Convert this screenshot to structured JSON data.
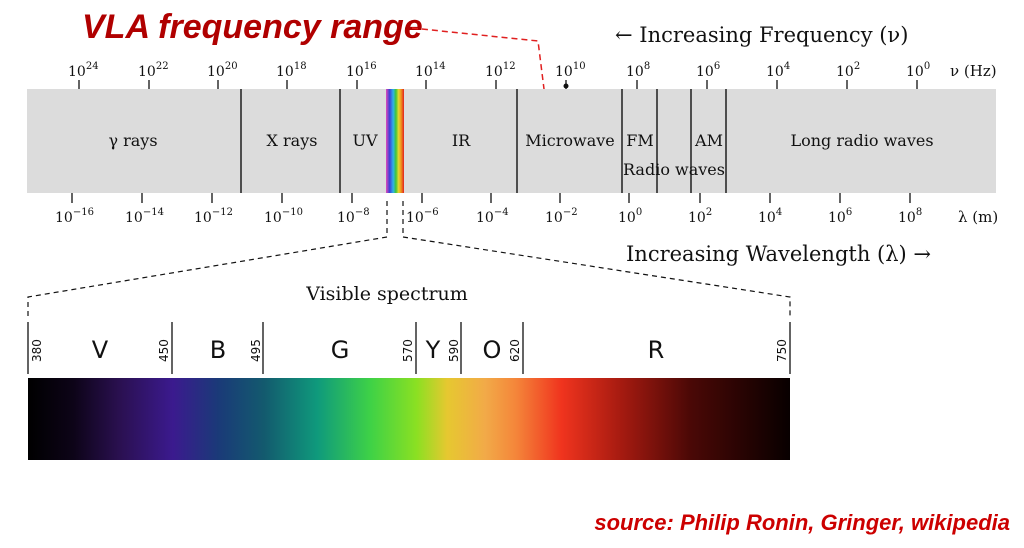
{
  "annotation": {
    "title": "VLA frequency range",
    "source": "source: Philip Ronin, Gringer, wikipedia",
    "title_color": "#b00000",
    "source_color": "#cc0000"
  },
  "frequency_axis": {
    "label": "← Increasing Frequency (ν)",
    "unit": "ν (Hz)",
    "ticks": [
      {
        "base": "10",
        "exp": "24"
      },
      {
        "base": "10",
        "exp": "22"
      },
      {
        "base": "10",
        "exp": "20"
      },
      {
        "base": "10",
        "exp": "18"
      },
      {
        "base": "10",
        "exp": "16"
      },
      {
        "base": "10",
        "exp": "14"
      },
      {
        "base": "10",
        "exp": "12"
      },
      {
        "base": "10",
        "exp": "10"
      },
      {
        "base": "10",
        "exp": "8"
      },
      {
        "base": "10",
        "exp": "6"
      },
      {
        "base": "10",
        "exp": "4"
      },
      {
        "base": "10",
        "exp": "2"
      },
      {
        "base": "10",
        "exp": "0"
      }
    ]
  },
  "wavelength_axis": {
    "label": "Increasing Wavelength (λ) →",
    "unit": "λ (m)",
    "ticks": [
      {
        "base": "10",
        "exp": "−16"
      },
      {
        "base": "10",
        "exp": "−14"
      },
      {
        "base": "10",
        "exp": "−12"
      },
      {
        "base": "10",
        "exp": "−10"
      },
      {
        "base": "10",
        "exp": "−8"
      },
      {
        "base": "10",
        "exp": "−6"
      },
      {
        "base": "10",
        "exp": "−4"
      },
      {
        "base": "10",
        "exp": "−2"
      },
      {
        "base": "10",
        "exp": "0"
      },
      {
        "base": "10",
        "exp": "2"
      },
      {
        "base": "10",
        "exp": "4"
      },
      {
        "base": "10",
        "exp": "6"
      },
      {
        "base": "10",
        "exp": "8"
      }
    ]
  },
  "bands": {
    "gamma": "γ rays",
    "xray": "X rays",
    "uv": "UV",
    "ir": "IR",
    "microwave": "Microwave",
    "fm": "FM",
    "am": "AM",
    "radio": "Radio waves",
    "long_radio": "Long radio waves"
  },
  "visible": {
    "title": "Visible spectrum",
    "ticks": [
      "380",
      "450",
      "495",
      "570",
      "590",
      "620",
      "750"
    ],
    "colors": [
      "V",
      "B",
      "G",
      "Y",
      "O",
      "R"
    ]
  }
}
